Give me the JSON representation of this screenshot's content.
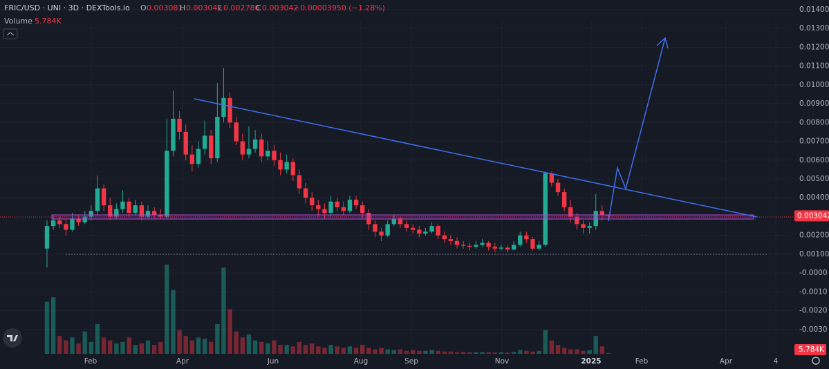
{
  "header": {
    "symbol": "FRIC/USD · UNI · 3D · DEXTools.io",
    "o_key": "O",
    "o": "0.003081",
    "h_key": "H",
    "h": "0.003042",
    "l_key": "L",
    "l": "0.002786",
    "c_key": "C",
    "c": "0.003042",
    "change": "−0.00003950 (−1.28%)"
  },
  "chart_data": {
    "type": "candlestick",
    "x_labels": [
      "Feb",
      "Apr",
      "Jun",
      "Aug",
      "Sep",
      "Nov",
      "2025",
      "Feb",
      "Apr",
      "4"
    ],
    "open": [
      0.0013,
      0.0025,
      0.0028,
      0.0026,
      0.0023,
      0.0029,
      0.0027,
      0.003,
      0.0033,
      0.0045,
      0.0036,
      0.003,
      0.0034,
      0.0038,
      0.0032,
      0.0036,
      0.003,
      0.0033,
      0.0031,
      0.003,
      0.0065,
      0.0082,
      0.0075,
      0.0063,
      0.0058,
      0.0066,
      0.0073,
      0.0061,
      0.0083,
      0.0093,
      0.008,
      0.007,
      0.0063,
      0.0066,
      0.0071,
      0.0062,
      0.0065,
      0.006,
      0.0055,
      0.0059,
      0.0052,
      0.0045,
      0.004,
      0.0036,
      0.0034,
      0.0032,
      0.0038,
      0.0035,
      0.0033,
      0.0039,
      0.0036,
      0.0032,
      0.0026,
      0.0022,
      0.002,
      0.0026,
      0.0029,
      0.0026,
      0.0024,
      0.0023,
      0.0021,
      0.0022,
      0.0025,
      0.002,
      0.0018,
      0.0017,
      0.0015,
      0.00145,
      0.0014,
      0.0015,
      0.0016,
      0.0014,
      0.0013,
      0.00135,
      0.00125,
      0.0015,
      0.002,
      0.0018,
      0.0013,
      0.0015,
      0.0053,
      0.0048,
      0.0043,
      0.0035,
      0.003,
      0.0026,
      0.0024,
      0.0025,
      0.0033,
      0.003081
    ],
    "high": [
      0.0028,
      0.0031,
      0.003,
      0.0029,
      0.0032,
      0.0031,
      0.0033,
      0.0036,
      0.0052,
      0.0047,
      0.004,
      0.0037,
      0.0044,
      0.004,
      0.0039,
      0.0038,
      0.0036,
      0.0035,
      0.0034,
      0.0082,
      0.0097,
      0.0086,
      0.0079,
      0.0068,
      0.007,
      0.0081,
      0.0076,
      0.0101,
      0.0109,
      0.0096,
      0.0083,
      0.0074,
      0.0078,
      0.0076,
      0.0074,
      0.007,
      0.0068,
      0.0064,
      0.0063,
      0.0061,
      0.0055,
      0.0048,
      0.0043,
      0.0039,
      0.0037,
      0.0041,
      0.004,
      0.0038,
      0.0041,
      0.0041,
      0.0038,
      0.0034,
      0.0028,
      0.0024,
      0.0028,
      0.0031,
      0.003,
      0.0028,
      0.0026,
      0.0025,
      0.0024,
      0.0027,
      0.0026,
      0.0022,
      0.002,
      0.0019,
      0.0017,
      0.0016,
      0.0017,
      0.0018,
      0.0017,
      0.0016,
      0.0015,
      0.0015,
      0.0017,
      0.0022,
      0.0022,
      0.0019,
      0.0017,
      0.0054,
      0.0054,
      0.005,
      0.0045,
      0.0039,
      0.0032,
      0.0028,
      0.0027,
      0.0042,
      0.0036,
      0.003042
    ],
    "low": [
      0.0003,
      0.0023,
      0.0024,
      0.002,
      0.0022,
      0.0025,
      0.0026,
      0.0028,
      0.0031,
      0.0033,
      0.0028,
      0.0029,
      0.0032,
      0.003,
      0.0031,
      0.0028,
      0.0029,
      0.0029,
      0.0029,
      0.0029,
      0.0062,
      0.0071,
      0.006,
      0.0054,
      0.0056,
      0.0063,
      0.0058,
      0.0059,
      0.008,
      0.0077,
      0.0068,
      0.006,
      0.0061,
      0.0064,
      0.0059,
      0.006,
      0.0057,
      0.0052,
      0.0053,
      0.0049,
      0.0042,
      0.0037,
      0.0033,
      0.003,
      0.0029,
      0.003,
      0.0033,
      0.0031,
      0.0032,
      0.0034,
      0.0029,
      0.0023,
      0.0019,
      0.0017,
      0.0019,
      0.0025,
      0.0024,
      0.0022,
      0.0021,
      0.0019,
      0.002,
      0.0021,
      0.0018,
      0.0016,
      0.0015,
      0.0013,
      0.0013,
      0.0012,
      0.0013,
      0.0014,
      0.0012,
      0.0011,
      0.0012,
      0.0011,
      0.0012,
      0.0014,
      0.0016,
      0.0012,
      0.0012,
      0.0014,
      0.0046,
      0.0041,
      0.0033,
      0.0027,
      0.0023,
      0.0021,
      0.0021,
      0.0023,
      0.0028,
      0.002786
    ],
    "close": [
      0.0025,
      0.0028,
      0.0026,
      0.0023,
      0.0029,
      0.0027,
      0.003,
      0.0033,
      0.0045,
      0.0036,
      0.003,
      0.0034,
      0.0038,
      0.0032,
      0.0036,
      0.003,
      0.0033,
      0.0031,
      0.003,
      0.0065,
      0.0082,
      0.0075,
      0.0063,
      0.0058,
      0.0066,
      0.0073,
      0.0061,
      0.0083,
      0.0093,
      0.008,
      0.007,
      0.0063,
      0.0066,
      0.0071,
      0.0062,
      0.0065,
      0.006,
      0.0055,
      0.0059,
      0.0052,
      0.0045,
      0.004,
      0.0036,
      0.0034,
      0.0032,
      0.0038,
      0.0035,
      0.0033,
      0.0039,
      0.0036,
      0.0032,
      0.0026,
      0.0022,
      0.002,
      0.0026,
      0.0029,
      0.0026,
      0.0024,
      0.0023,
      0.0021,
      0.0022,
      0.0025,
      0.002,
      0.0018,
      0.0017,
      0.0015,
      0.00145,
      0.0014,
      0.0015,
      0.0016,
      0.0014,
      0.0013,
      0.00135,
      0.00125,
      0.0015,
      0.002,
      0.0018,
      0.0013,
      0.0015,
      0.0053,
      0.0048,
      0.0043,
      0.0035,
      0.003,
      0.0026,
      0.0024,
      0.0025,
      0.0033,
      0.003081,
      0.003042
    ],
    "volume": {
      "name": "Volume",
      "label": "5.784K",
      "values": [
        350000,
        380000,
        120000,
        90000,
        110000,
        70000,
        150000,
        80000,
        200000,
        110000,
        90000,
        70000,
        80000,
        110000,
        60000,
        70000,
        90000,
        60000,
        80000,
        600000,
        430000,
        160000,
        120000,
        90000,
        110000,
        100000,
        80000,
        200000,
        580000,
        300000,
        150000,
        110000,
        130000,
        90000,
        80000,
        70000,
        90000,
        60000,
        60000,
        50000,
        80000,
        60000,
        70000,
        50000,
        40000,
        60000,
        50000,
        40000,
        50000,
        40000,
        60000,
        40000,
        30000,
        40000,
        30000,
        25000,
        30000,
        20000,
        25000,
        20000,
        20000,
        25000,
        20000,
        15000,
        15000,
        10000,
        12000,
        10000,
        10000,
        12000,
        10000,
        8000,
        10000,
        8000,
        12000,
        25000,
        20000,
        15000,
        20000,
        160000,
        90000,
        60000,
        40000,
        30000,
        30000,
        20000,
        25000,
        120000,
        50000,
        5784
      ]
    },
    "up_color": "#22ab94",
    "down_color": "#f23645",
    "ylim": [
      -0.00429,
      0.01451
    ],
    "yticks": [
      {
        "value": 0.014,
        "label": "0.01400"
      },
      {
        "value": 0.013,
        "label": "0.01300"
      },
      {
        "value": 0.012,
        "label": "0.01200"
      },
      {
        "value": 0.011,
        "label": "0.01100"
      },
      {
        "value": 0.01,
        "label": "0.01000"
      },
      {
        "value": 0.009,
        "label": "0.009000"
      },
      {
        "value": 0.008,
        "label": "0.008000"
      },
      {
        "value": 0.007,
        "label": "0.007000"
      },
      {
        "value": 0.006,
        "label": "0.006000"
      },
      {
        "value": 0.005,
        "label": "0.005000"
      },
      {
        "value": 0.004,
        "label": "0.004000"
      },
      {
        "value": 0.002,
        "label": "0.002000"
      },
      {
        "value": 0.001,
        "label": "0.001000"
      },
      {
        "value": 0,
        "label": "-0.0000"
      },
      {
        "value": -0.001,
        "label": "-0.0010"
      },
      {
        "value": -0.002,
        "label": "-0.0020"
      },
      {
        "value": -0.003,
        "label": "-0.0030"
      }
    ],
    "grid": true
  }
}
